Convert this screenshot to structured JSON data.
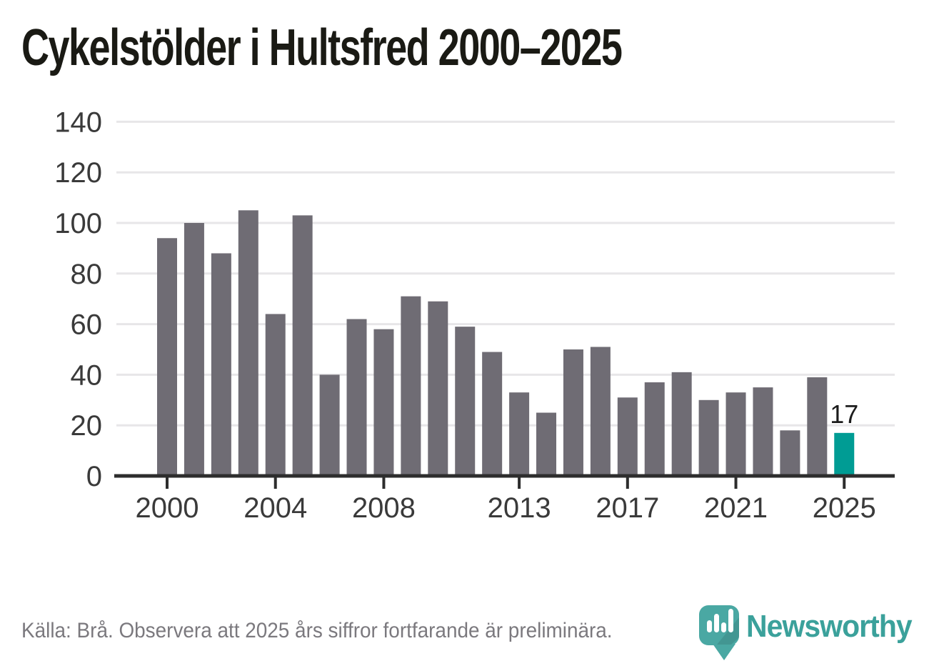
{
  "page": {
    "title": "Cykelstölder i Hultsfred 2000–2025"
  },
  "footer": {
    "source_text": "Källa: Brå. Observera att 2025 års siffror fortfarande är preliminära."
  },
  "logo": {
    "brand": "Newsworthy",
    "wordmark_color": "#3ba19b",
    "pin_color": "#4aa8a3",
    "pin_bar_color": "#ffffff"
  },
  "chart_data": {
    "type": "bar",
    "title": "Cykelstölder i Hultsfred 2000–2025",
    "xlabel": "",
    "ylabel": "",
    "categories": [
      "2000",
      "2001",
      "2002",
      "2003",
      "2004",
      "2005",
      "2006",
      "2007",
      "2008",
      "2009",
      "2010",
      "2011",
      "2012",
      "2013",
      "2014",
      "2015",
      "2016",
      "2017",
      "2018",
      "2019",
      "2020",
      "2021",
      "2022",
      "2023",
      "2024",
      "2025"
    ],
    "values": [
      94,
      100,
      88,
      105,
      64,
      103,
      40,
      62,
      58,
      71,
      69,
      59,
      49,
      33,
      25,
      50,
      51,
      31,
      37,
      41,
      30,
      33,
      35,
      18,
      39,
      17
    ],
    "x_tick_labels": [
      "2000",
      "2004",
      "2008",
      "2013",
      "2017",
      "2021",
      "2025"
    ],
    "y_ticks": [
      0,
      20,
      40,
      60,
      80,
      100,
      120,
      140
    ],
    "ylim": [
      0,
      145
    ],
    "grid": "horizontal",
    "legend": "none",
    "bar_color": "#6f6c74",
    "highlight": {
      "category": "2025",
      "color": "#009c94",
      "label": "17"
    },
    "grid_color": "#e7e6e8",
    "axis_color": "#2d2d2d",
    "tick_label_color": "#3a3a3a",
    "annotation_color": "#1c1c1c"
  }
}
